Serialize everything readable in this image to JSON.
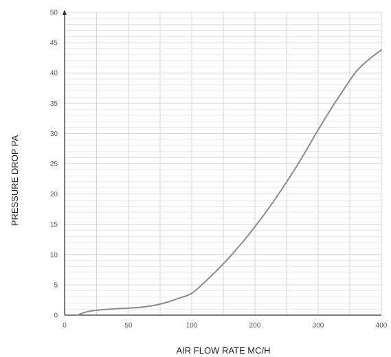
{
  "chart_data": {
    "type": "line",
    "title": "",
    "xlabel": "AIR FLOW RATE MC/H",
    "ylabel": "PRESSURE DROP PA",
    "x_tick_labels": [
      "0",
      "50",
      "100",
      "200",
      "300",
      "400"
    ],
    "y_tick_labels": [
      "0",
      "5",
      "10",
      "15",
      "20",
      "25",
      "30",
      "35",
      "40",
      "45",
      "50"
    ],
    "x_tick_values": [
      0,
      50,
      100,
      200,
      300,
      400
    ],
    "ylim": [
      0,
      50
    ],
    "grid": true,
    "x_scale": "piecewise-linear (equal spacing 0-50-100, then double spacing 100-400)",
    "colors": {
      "line": "#8a8a8a",
      "grid": "#d6d6d6",
      "axis": "#333333"
    },
    "series": [
      {
        "x": [
          10,
          15,
          20,
          30,
          40,
          50,
          60,
          70,
          80,
          90,
          100,
          120,
          140,
          160,
          180,
          200,
          220,
          240,
          260,
          280,
          300,
          320,
          340,
          360,
          380,
          400
        ],
        "y": [
          0,
          0.4,
          0.65,
          0.9,
          1.05,
          1.15,
          1.3,
          1.6,
          2.1,
          2.8,
          3.6,
          5.4,
          7.4,
          9.6,
          12.0,
          14.6,
          17.4,
          20.4,
          23.6,
          27.0,
          30.6,
          34.0,
          37.2,
          40.2,
          42.2,
          43.8
        ]
      }
    ]
  }
}
